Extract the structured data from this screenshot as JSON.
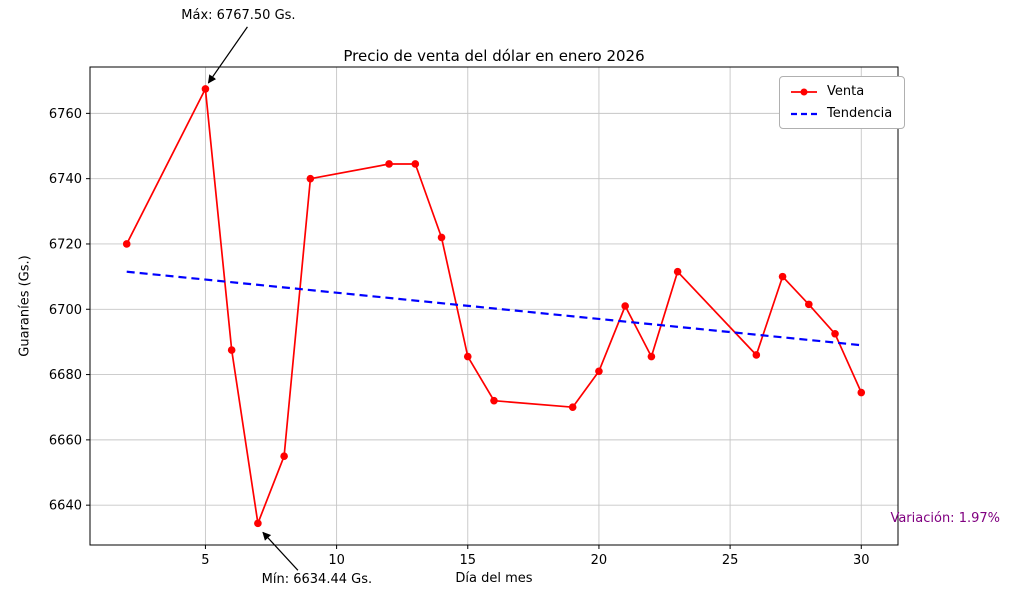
{
  "chart_data": {
    "type": "line",
    "title": "Precio de venta del dólar en enero 2026",
    "xlabel": "Día del mes",
    "ylabel": "Guaraníes (Gs.)",
    "grid": true,
    "legend_position": "upper right",
    "xlim": [
      0.6,
      31.4
    ],
    "ylim": [
      6627.8,
      6774.2
    ],
    "x_ticks": [
      5,
      10,
      15,
      20,
      25,
      30
    ],
    "y_ticks": [
      6640,
      6660,
      6680,
      6700,
      6720,
      6740,
      6760
    ],
    "x": [
      2,
      5,
      6,
      7,
      8,
      9,
      12,
      13,
      14,
      15,
      16,
      19,
      20,
      21,
      22,
      23,
      26,
      27,
      28,
      29,
      30
    ],
    "series": [
      {
        "name": "Venta",
        "color": "#ff0000",
        "style": "solid",
        "marker": "circle",
        "values": [
          6720.0,
          6767.5,
          6687.5,
          6634.44,
          6655.0,
          6740.0,
          6744.5,
          6744.5,
          6722.0,
          6685.5,
          6672.0,
          6670.0,
          6681.0,
          6701.0,
          6685.5,
          6711.5,
          6686.0,
          6710.0,
          6701.5,
          6692.5,
          6674.5
        ]
      },
      {
        "name": "Tendencia",
        "color": "#0000ff",
        "style": "dashed",
        "marker": "none",
        "x": [
          2,
          30
        ],
        "values": [
          6711.5,
          6689.0
        ]
      }
    ],
    "annotations": [
      {
        "id": "max",
        "text": "Máx: 6767.50 Gs.",
        "point_x": 5,
        "point_y": 6767.5
      },
      {
        "id": "min",
        "text": "Mín: 6634.44 Gs.",
        "point_x": 7,
        "point_y": 6634.44
      }
    ],
    "footnote": {
      "text": "Variación: 1.97%",
      "color": "#800080"
    },
    "colors": {
      "grid": "#c6c6c6",
      "frame": "#000000",
      "arrow": "#000000"
    }
  }
}
